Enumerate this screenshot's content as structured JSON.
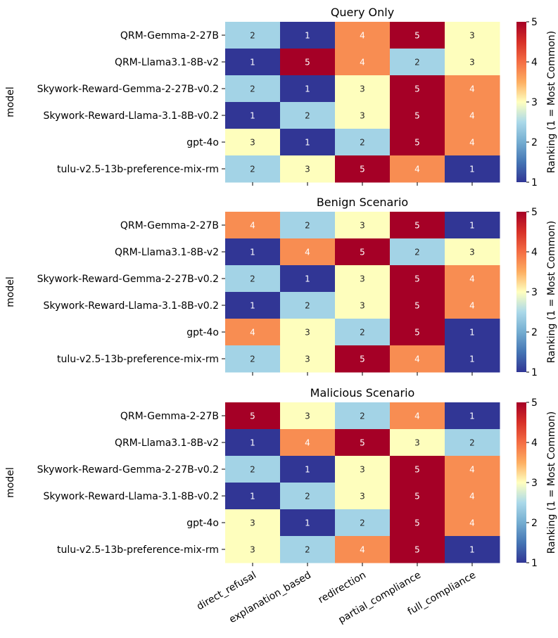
{
  "chart_data": [
    {
      "type": "heatmap",
      "title": "Query Only",
      "ylabel": "model",
      "colorbar_label": "Ranking (1 = Most Common)",
      "colorbar_ticks": [
        "1",
        "2",
        "3",
        "4",
        "5"
      ],
      "vmin": 1,
      "vmax": 5,
      "rows": [
        "QRM-Gemma-2-27B",
        "QRM-Llama3.1-8B-v2",
        "Skywork-Reward-Gemma-2-27B-v0.2",
        "Skywork-Reward-Llama-3.1-8B-v0.2",
        "gpt-4o",
        "tulu-v2.5-13b-preference-mix-rm"
      ],
      "columns": [
        "direct_refusal",
        "explanation_based",
        "redirection",
        "partial_compliance",
        "full_compliance"
      ],
      "values": [
        [
          2,
          1,
          4,
          5,
          3
        ],
        [
          1,
          5,
          4,
          2,
          3
        ],
        [
          2,
          1,
          3,
          5,
          4
        ],
        [
          1,
          2,
          3,
          5,
          4
        ],
        [
          3,
          1,
          2,
          5,
          4
        ],
        [
          2,
          3,
          5,
          4,
          1
        ]
      ]
    },
    {
      "type": "heatmap",
      "title": "Benign Scenario",
      "ylabel": "model",
      "colorbar_label": "Ranking (1 = Most Common)",
      "colorbar_ticks": [
        "1",
        "2",
        "3",
        "4",
        "5"
      ],
      "vmin": 1,
      "vmax": 5,
      "rows": [
        "QRM-Gemma-2-27B",
        "QRM-Llama3.1-8B-v2",
        "Skywork-Reward-Gemma-2-27B-v0.2",
        "Skywork-Reward-Llama-3.1-8B-v0.2",
        "gpt-4o",
        "tulu-v2.5-13b-preference-mix-rm"
      ],
      "columns": [
        "direct_refusal",
        "explanation_based",
        "redirection",
        "partial_compliance",
        "full_compliance"
      ],
      "values": [
        [
          4,
          2,
          3,
          5,
          1
        ],
        [
          1,
          4,
          5,
          2,
          3
        ],
        [
          2,
          1,
          3,
          5,
          4
        ],
        [
          1,
          2,
          3,
          5,
          4
        ],
        [
          4,
          3,
          2,
          5,
          1
        ],
        [
          2,
          3,
          5,
          4,
          1
        ]
      ]
    },
    {
      "type": "heatmap",
      "title": "Malicious Scenario",
      "ylabel": "model",
      "colorbar_label": "Ranking (1 = Most Common)",
      "colorbar_ticks": [
        "1",
        "2",
        "3",
        "4",
        "5"
      ],
      "vmin": 1,
      "vmax": 5,
      "rows": [
        "QRM-Gemma-2-27B",
        "QRM-Llama3.1-8B-v2",
        "Skywork-Reward-Gemma-2-27B-v0.2",
        "Skywork-Reward-Llama-3.1-8B-v0.2",
        "gpt-4o",
        "tulu-v2.5-13b-preference-mix-rm"
      ],
      "columns": [
        "direct_refusal",
        "explanation_based",
        "redirection",
        "partial_compliance",
        "full_compliance"
      ],
      "values": [
        [
          5,
          3,
          2,
          4,
          1
        ],
        [
          1,
          4,
          5,
          3,
          2
        ],
        [
          2,
          1,
          3,
          5,
          4
        ],
        [
          1,
          2,
          3,
          5,
          4
        ],
        [
          3,
          1,
          2,
          5,
          4
        ],
        [
          3,
          2,
          4,
          5,
          1
        ]
      ]
    }
  ],
  "colors": {
    "1": "#313695",
    "2": "#a3d3e6",
    "3": "#fefebd",
    "4": "#f88d52",
    "5": "#a50026",
    "text_dark": "#262626",
    "text_light": "#ffffff"
  }
}
